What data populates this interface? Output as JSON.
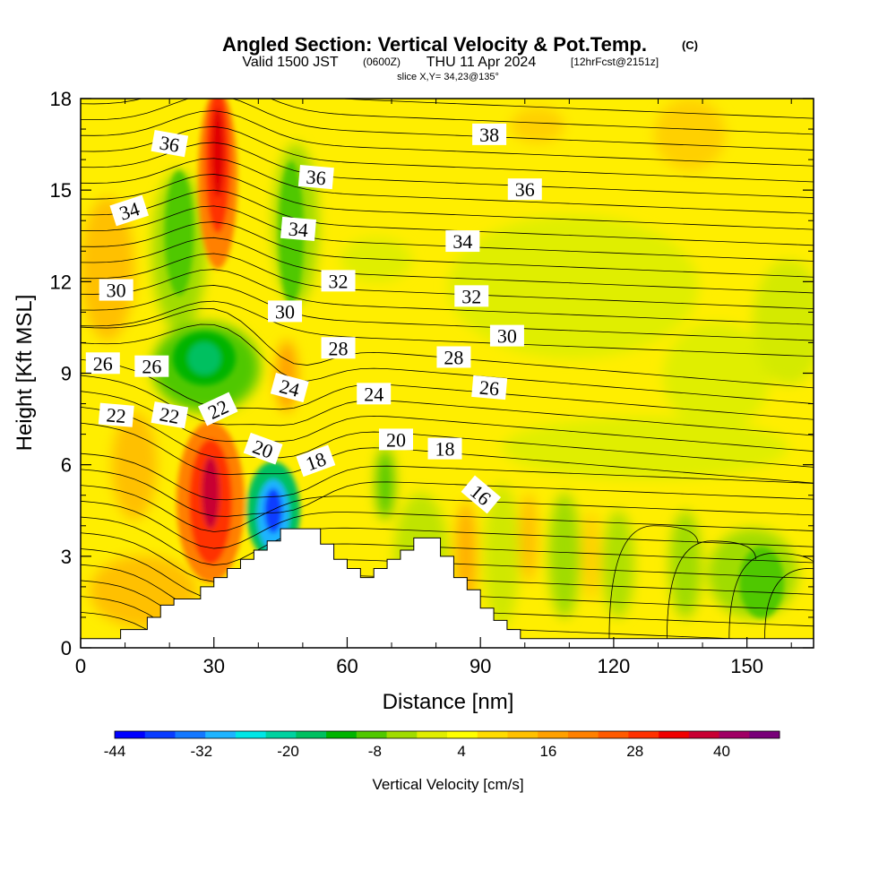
{
  "header": {
    "title": "Angled Section: Vertical Velocity & Pot.Temp.",
    "title_unit": "(C)",
    "valid_prefix": "Valid 1500 JST",
    "valid_zulu": "(0600Z)",
    "valid_date": "THU 11 Apr 2024",
    "forecast_note": "[12hrFcst@2151z]",
    "slice_text": "slice X,Y= 34,23@135°"
  },
  "chart_data": {
    "type": "heatmap",
    "xlabel": "Distance [nm]",
    "ylabel": "Height [Kft MSL]",
    "xlim": [
      0,
      165
    ],
    "ylim": [
      0,
      18
    ],
    "x_ticks": [
      "0",
      "30",
      "60",
      "90",
      "120",
      "150"
    ],
    "y_ticks": [
      "0",
      "3",
      "6",
      "9",
      "12",
      "15",
      "18"
    ],
    "colorbar": {
      "label": "Vertical Velocity [cm/s]",
      "tick_labels": [
        "-44",
        "-32",
        "-20",
        "-8",
        "4",
        "16",
        "28",
        "40"
      ],
      "colors": [
        "#0000ff",
        "#0a3cff",
        "#1478ff",
        "#1eb4ff",
        "#00e6e6",
        "#00d2a0",
        "#00c060",
        "#00b400",
        "#50c800",
        "#a0dc00",
        "#e0ee00",
        "#ffff00",
        "#ffdc00",
        "#ffc000",
        "#ffa000",
        "#ff8000",
        "#ff5a00",
        "#ff3000",
        "#f00000",
        "#c80032",
        "#a00064",
        "#780078"
      ]
    },
    "potential_temperature_labels": [
      {
        "text": "36",
        "x": 20,
        "y": 16.5,
        "angle": -10
      },
      {
        "text": "34",
        "x": 11,
        "y": 14.3,
        "angle": 18
      },
      {
        "text": "30",
        "x": 8,
        "y": 11.7,
        "angle": 0
      },
      {
        "text": "26",
        "x": 5,
        "y": 9.3,
        "angle": 0
      },
      {
        "text": "26",
        "x": 16,
        "y": 9.2,
        "angle": 0
      },
      {
        "text": "22",
        "x": 8,
        "y": 7.6,
        "angle": -5
      },
      {
        "text": "22",
        "x": 20,
        "y": 7.6,
        "angle": -10
      },
      {
        "text": "22",
        "x": 31,
        "y": 7.8,
        "angle": 25
      },
      {
        "text": "36",
        "x": 53,
        "y": 15.4,
        "angle": -5
      },
      {
        "text": "34",
        "x": 49,
        "y": 13.7,
        "angle": -5
      },
      {
        "text": "32",
        "x": 58,
        "y": 12.0,
        "angle": 0
      },
      {
        "text": "30",
        "x": 46,
        "y": 11.0,
        "angle": 0
      },
      {
        "text": "28",
        "x": 58,
        "y": 9.8,
        "angle": 0
      },
      {
        "text": "24",
        "x": 47,
        "y": 8.5,
        "angle": -15
      },
      {
        "text": "20",
        "x": 41,
        "y": 6.5,
        "angle": -20
      },
      {
        "text": "18",
        "x": 53,
        "y": 6.1,
        "angle": 20
      },
      {
        "text": "24",
        "x": 66,
        "y": 8.3,
        "angle": 0
      },
      {
        "text": "20",
        "x": 71,
        "y": 6.8,
        "angle": 0
      },
      {
        "text": "18",
        "x": 82,
        "y": 6.5,
        "angle": 0
      },
      {
        "text": "28",
        "x": 84,
        "y": 9.5,
        "angle": 0
      },
      {
        "text": "26",
        "x": 92,
        "y": 8.5,
        "angle": -5
      },
      {
        "text": "34",
        "x": 86,
        "y": 13.3,
        "angle": 0
      },
      {
        "text": "32",
        "x": 88,
        "y": 11.5,
        "angle": 0
      },
      {
        "text": "30",
        "x": 96,
        "y": 10.2,
        "angle": 0
      },
      {
        "text": "38",
        "x": 92,
        "y": 16.8,
        "angle": 0
      },
      {
        "text": "36",
        "x": 100,
        "y": 15.0,
        "angle": 0
      },
      {
        "text": "16",
        "x": 90,
        "y": 5.0,
        "angle": -40
      }
    ],
    "terrain_profile": [
      [
        0,
        0.3
      ],
      [
        9,
        0.3
      ],
      [
        9,
        0.6
      ],
      [
        15,
        0.6
      ],
      [
        15,
        1.0
      ],
      [
        18,
        1.0
      ],
      [
        18,
        1.4
      ],
      [
        21,
        1.4
      ],
      [
        21,
        1.6
      ],
      [
        27,
        1.6
      ],
      [
        27,
        2.0
      ],
      [
        30,
        2.0
      ],
      [
        30,
        2.3
      ],
      [
        33,
        2.3
      ],
      [
        33,
        2.6
      ],
      [
        36,
        2.6
      ],
      [
        36,
        2.9
      ],
      [
        39,
        2.9
      ],
      [
        39,
        3.2
      ],
      [
        42,
        3.2
      ],
      [
        42,
        3.5
      ],
      [
        45,
        3.5
      ],
      [
        45,
        3.9
      ],
      [
        54,
        3.9
      ],
      [
        54,
        3.4
      ],
      [
        57,
        3.4
      ],
      [
        57,
        2.9
      ],
      [
        60,
        2.9
      ],
      [
        60,
        2.6
      ],
      [
        63,
        2.6
      ],
      [
        63,
        2.3
      ],
      [
        66,
        2.3
      ],
      [
        66,
        2.6
      ],
      [
        69,
        2.6
      ],
      [
        69,
        2.9
      ],
      [
        72,
        2.9
      ],
      [
        72,
        3.2
      ],
      [
        75,
        3.2
      ],
      [
        75,
        3.6
      ],
      [
        81,
        3.6
      ],
      [
        81,
        3.0
      ],
      [
        84,
        3.0
      ],
      [
        84,
        2.3
      ],
      [
        87,
        2.3
      ],
      [
        87,
        1.9
      ],
      [
        90,
        1.9
      ],
      [
        90,
        1.3
      ],
      [
        93,
        1.3
      ],
      [
        93,
        0.9
      ],
      [
        96,
        0.9
      ],
      [
        96,
        0.6
      ],
      [
        99,
        0.6
      ],
      [
        99,
        0.3
      ],
      [
        165,
        0.3
      ]
    ]
  }
}
